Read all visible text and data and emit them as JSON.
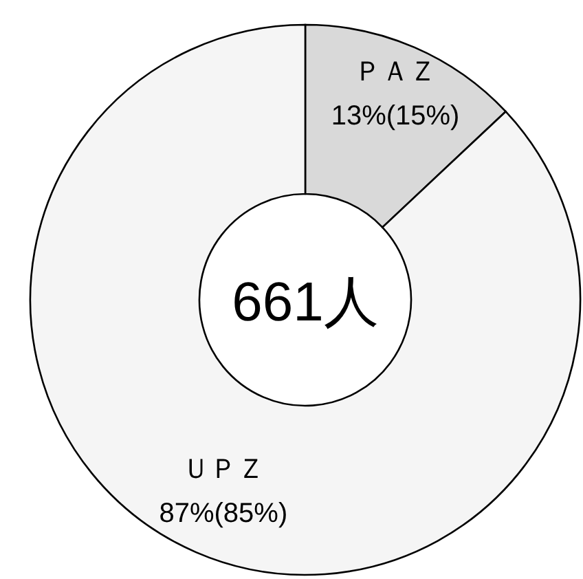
{
  "chart_data": {
    "type": "donut",
    "categories": [
      "ＰＡＺ",
      "ＵＰＺ"
    ],
    "values": [
      13,
      87
    ],
    "colors": [
      "#d9d9d9",
      "#f5f5f5"
    ],
    "value_labels": [
      "13%(15%)",
      "87%(85%)"
    ],
    "annotations": [
      "661人"
    ],
    "legend": false
  }
}
